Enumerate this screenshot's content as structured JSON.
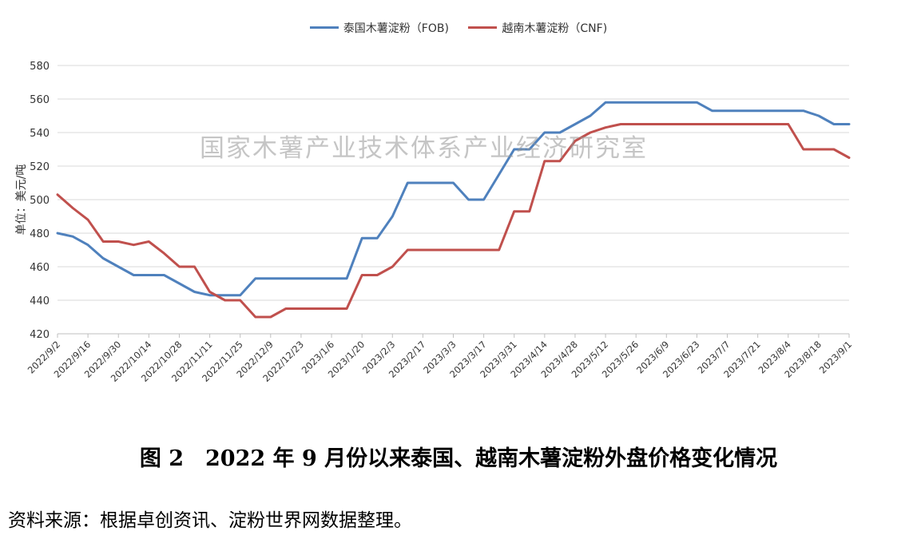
{
  "legend": {
    "series1_label": "泰国木薯淀粉（FOB)",
    "series2_label": "越南木薯淀粉（CNF)"
  },
  "watermark": "国家木薯产业技术体系产业经济研究室",
  "caption": "图 2　2022 年 9 月份以来泰国、越南木薯淀粉外盘价格变化情况",
  "source": "资料来源：根据卓创资讯、淀粉世界网数据整理。",
  "chart_data": {
    "type": "line",
    "ylabel": "单位：美元/吨",
    "ylim": [
      420,
      580
    ],
    "yticks": [
      420,
      440,
      460,
      480,
      500,
      520,
      540,
      560,
      580
    ],
    "grid": true,
    "legend_position": "top",
    "x": [
      "2022/9/2",
      "2022/9/9",
      "2022/9/16",
      "2022/9/23",
      "2022/9/30",
      "2022/10/7",
      "2022/10/14",
      "2022/10/21",
      "2022/10/28",
      "2022/11/4",
      "2022/11/11",
      "2022/11/18",
      "2022/11/25",
      "2022/12/2",
      "2022/12/9",
      "2022/12/16",
      "2022/12/23",
      "2022/12/30",
      "2023/1/6",
      "2023/1/13",
      "2023/1/20",
      "2023/1/27",
      "2023/2/3",
      "2023/2/10",
      "2023/2/17",
      "2023/2/24",
      "2023/3/3",
      "2023/3/10",
      "2023/3/17",
      "2023/3/24",
      "2023/3/31",
      "2023/4/7",
      "2023/4/14",
      "2023/4/21",
      "2023/4/28",
      "2023/5/5",
      "2023/5/12",
      "2023/5/19",
      "2023/5/26",
      "2023/6/2",
      "2023/6/9",
      "2023/6/16",
      "2023/6/23",
      "2023/6/30",
      "2023/7/7",
      "2023/7/14",
      "2023/7/21",
      "2023/7/28",
      "2023/8/4",
      "2023/8/11",
      "2023/8/18",
      "2023/8/25",
      "2023/9/1"
    ],
    "xticks": [
      "2022/9/2",
      "2022/9/16",
      "2022/9/30",
      "2022/10/14",
      "2022/10/28",
      "2022/11/11",
      "2022/11/25",
      "2022/12/9",
      "2022/12/23",
      "2023/1/6",
      "2023/1/20",
      "2023/2/3",
      "2023/2/17",
      "2023/3/3",
      "2023/3/17",
      "2023/3/31",
      "2023/4/14",
      "2023/4/28",
      "2023/5/12",
      "2023/5/26",
      "2023/6/9",
      "2023/6/23",
      "2023/7/7",
      "2023/7/21",
      "2023/8/4",
      "2023/8/18",
      "2023/9/1"
    ],
    "series": [
      {
        "name": "泰国木薯淀粉（FOB)",
        "color": "#4f81bd",
        "values": [
          480,
          478,
          473,
          465,
          460,
          455,
          455,
          455,
          450,
          445,
          443,
          443,
          443,
          453,
          453,
          453,
          453,
          453,
          453,
          453,
          477,
          477,
          490,
          510,
          510,
          510,
          510,
          500,
          500,
          515,
          530,
          530,
          540,
          540,
          545,
          550,
          558,
          558,
          558,
          558,
          558,
          558,
          558,
          553,
          553,
          553,
          553,
          553,
          553,
          553,
          550,
          545,
          545
        ]
      },
      {
        "name": "越南木薯淀粉（CNF)",
        "color": "#c0504d",
        "values": [
          503,
          495,
          488,
          475,
          475,
          473,
          475,
          468,
          460,
          460,
          445,
          440,
          440,
          430,
          430,
          435,
          435,
          435,
          435,
          435,
          455,
          455,
          460,
          470,
          470,
          470,
          470,
          470,
          470,
          470,
          493,
          493,
          523,
          523,
          535,
          540,
          543,
          545,
          545,
          545,
          545,
          545,
          545,
          545,
          545,
          545,
          545,
          545,
          545,
          530,
          530,
          530,
          525
        ]
      }
    ]
  }
}
